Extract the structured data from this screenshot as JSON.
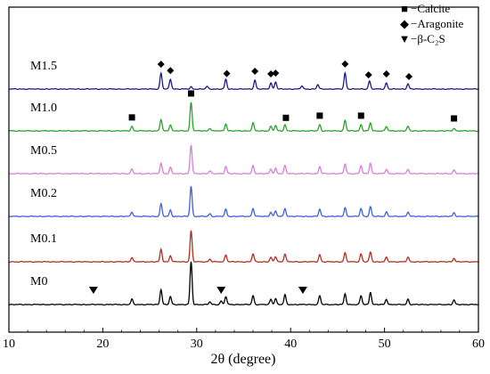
{
  "chart_data": {
    "type": "line",
    "xlabel": "2θ (degree)",
    "xlim": [
      10,
      60
    ],
    "xticks": [
      10,
      20,
      30,
      40,
      50,
      60
    ],
    "yticks": [],
    "grid": false,
    "series": [
      {
        "name": "M1.5",
        "color": "#1a1a8c",
        "peaks": [
          [
            26.2,
            0.9
          ],
          [
            27.2,
            0.55
          ],
          [
            29.4,
            0.12
          ],
          [
            31.1,
            0.15
          ],
          [
            33.1,
            0.55
          ],
          [
            36.2,
            0.5
          ],
          [
            37.9,
            0.35
          ],
          [
            38.4,
            0.4
          ],
          [
            41.2,
            0.18
          ],
          [
            42.9,
            0.25
          ],
          [
            45.8,
            0.9
          ],
          [
            48.4,
            0.45
          ],
          [
            50.2,
            0.35
          ],
          [
            52.5,
            0.3
          ]
        ]
      },
      {
        "name": "M1.0",
        "color": "#2ca02c",
        "peaks": [
          [
            23.1,
            0.25
          ],
          [
            26.2,
            0.65
          ],
          [
            27.2,
            0.35
          ],
          [
            29.4,
            1.6
          ],
          [
            31.4,
            0.15
          ],
          [
            33.1,
            0.4
          ],
          [
            36.0,
            0.45
          ],
          [
            37.9,
            0.25
          ],
          [
            38.4,
            0.3
          ],
          [
            39.4,
            0.35
          ],
          [
            43.1,
            0.35
          ],
          [
            45.8,
            0.6
          ],
          [
            47.5,
            0.35
          ],
          [
            48.5,
            0.45
          ],
          [
            50.2,
            0.25
          ],
          [
            52.5,
            0.25
          ],
          [
            57.4,
            0.15
          ]
        ]
      },
      {
        "name": "M0.5",
        "color": "#d67fd6",
        "peaks": [
          [
            23.1,
            0.25
          ],
          [
            26.2,
            0.6
          ],
          [
            27.2,
            0.35
          ],
          [
            29.4,
            1.6
          ],
          [
            31.4,
            0.15
          ],
          [
            33.1,
            0.4
          ],
          [
            36.0,
            0.45
          ],
          [
            37.9,
            0.25
          ],
          [
            38.4,
            0.3
          ],
          [
            39.4,
            0.45
          ],
          [
            43.1,
            0.4
          ],
          [
            45.8,
            0.55
          ],
          [
            47.5,
            0.45
          ],
          [
            48.5,
            0.6
          ],
          [
            50.2,
            0.25
          ],
          [
            52.5,
            0.25
          ],
          [
            57.4,
            0.2
          ]
        ]
      },
      {
        "name": "M0.2",
        "color": "#3f5fe0",
        "peaks": [
          [
            23.1,
            0.25
          ],
          [
            26.2,
            0.7
          ],
          [
            27.2,
            0.35
          ],
          [
            29.4,
            1.7
          ],
          [
            31.4,
            0.15
          ],
          [
            33.1,
            0.4
          ],
          [
            36.0,
            0.45
          ],
          [
            37.9,
            0.25
          ],
          [
            38.4,
            0.3
          ],
          [
            39.4,
            0.45
          ],
          [
            43.1,
            0.4
          ],
          [
            45.8,
            0.5
          ],
          [
            47.5,
            0.45
          ],
          [
            48.5,
            0.55
          ],
          [
            50.2,
            0.25
          ],
          [
            52.5,
            0.25
          ],
          [
            57.4,
            0.2
          ]
        ]
      },
      {
        "name": "M0.1",
        "color": "#b03020",
        "peaks": [
          [
            23.1,
            0.25
          ],
          [
            26.2,
            0.7
          ],
          [
            27.2,
            0.35
          ],
          [
            29.4,
            1.75
          ],
          [
            31.4,
            0.15
          ],
          [
            33.1,
            0.4
          ],
          [
            36.0,
            0.45
          ],
          [
            37.9,
            0.25
          ],
          [
            38.4,
            0.3
          ],
          [
            39.4,
            0.45
          ],
          [
            43.1,
            0.4
          ],
          [
            45.8,
            0.5
          ],
          [
            47.5,
            0.45
          ],
          [
            48.5,
            0.55
          ],
          [
            50.2,
            0.25
          ],
          [
            52.5,
            0.25
          ],
          [
            57.4,
            0.2
          ]
        ]
      },
      {
        "name": "M0",
        "color": "#000000",
        "peaks": [
          [
            23.1,
            0.3
          ],
          [
            26.2,
            0.85
          ],
          [
            27.2,
            0.45
          ],
          [
            29.4,
            2.4
          ],
          [
            31.4,
            0.15
          ],
          [
            32.6,
            0.2
          ],
          [
            33.1,
            0.45
          ],
          [
            36.0,
            0.5
          ],
          [
            37.9,
            0.3
          ],
          [
            38.4,
            0.35
          ],
          [
            39.4,
            0.55
          ],
          [
            43.1,
            0.5
          ],
          [
            45.8,
            0.6
          ],
          [
            47.5,
            0.5
          ],
          [
            48.5,
            0.7
          ],
          [
            50.2,
            0.3
          ],
          [
            52.5,
            0.3
          ],
          [
            57.4,
            0.25
          ]
        ]
      }
    ],
    "markers": {
      "aragonite": {
        "series": "M1.5",
        "x": [
          26.2,
          27.2,
          33.2,
          36.2,
          37.9,
          38.4,
          45.8,
          48.3,
          50.2,
          52.6
        ]
      },
      "calcite": {
        "series": "M1.0",
        "x": [
          23.1,
          29.4,
          39.5,
          43.1,
          47.5,
          57.4
        ]
      },
      "beta_c2s": {
        "series": "M0",
        "x": [
          19.0,
          32.6,
          41.3
        ]
      }
    },
    "legend": {
      "position": "top-right",
      "entries": [
        {
          "symbol": "■",
          "label": "−Calcite"
        },
        {
          "symbol": "◆",
          "label": "−Aragonite"
        },
        {
          "symbol": "▼",
          "label": "−β-C₂S"
        }
      ]
    }
  }
}
